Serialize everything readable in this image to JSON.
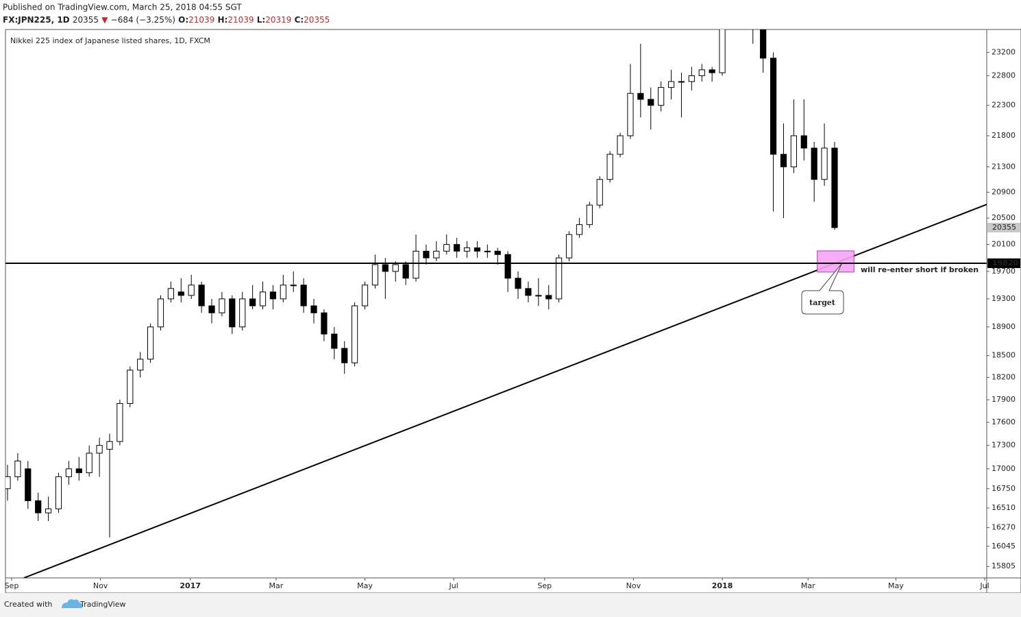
{
  "header": {
    "published": "Published on TradingView.com, March 25, 2018 04:55 SGT",
    "symbol": "FX:JPN225, 1D",
    "last": "20355",
    "arrow": "▼",
    "change": "−684 (−3.25%)",
    "o_label": "O:",
    "o": "21039",
    "h_label": "H:",
    "h": "21039",
    "l_label": "L:",
    "l": "20319",
    "c_label": "C:",
    "c": "20355"
  },
  "chart_data": {
    "type": "candlestick",
    "title": "Nikkei 225 index of Japanese listed shares, 1D, FXCM",
    "x": [
      0,
      1,
      2,
      3,
      4,
      5,
      6,
      7,
      8,
      9,
      10,
      11,
      12,
      13,
      14,
      15,
      16,
      17,
      18,
      19,
      20,
      21,
      22,
      23,
      24,
      25,
      26,
      27,
      28,
      29,
      30,
      31,
      32,
      33,
      34,
      35,
      36,
      37,
      38,
      39,
      40,
      41,
      42,
      43,
      44,
      45,
      46,
      47,
      48,
      49,
      50,
      51,
      52,
      53,
      54,
      55,
      56,
      57,
      58,
      59,
      60,
      61,
      62,
      63,
      64,
      65,
      66,
      67,
      68,
      69,
      70,
      71,
      72,
      73,
      74,
      75,
      76,
      77,
      78,
      79,
      80,
      81
    ],
    "open": [
      16750,
      16900,
      17000,
      16600,
      16450,
      16500,
      16900,
      17000,
      16950,
      17200,
      17250,
      17350,
      17850,
      18300,
      18450,
      18900,
      19300,
      19400,
      19350,
      19500,
      19200,
      19100,
      19300,
      18900,
      19300,
      19200,
      19400,
      19300,
      19500,
      19500,
      19200,
      19100,
      18800,
      18600,
      18400,
      19200,
      19500,
      19800,
      19700,
      19800,
      19600,
      20000,
      19900,
      20000,
      20100,
      20000,
      20050,
      20000,
      20000,
      19950,
      19600,
      19450,
      19350,
      19350,
      19300,
      19900,
      20250,
      20400,
      20700,
      21100,
      21500,
      21800,
      22500,
      22400,
      22300,
      22600,
      22700,
      22700,
      22800,
      22900,
      22850,
      23700,
      23750,
      23800,
      23650,
      23100,
      21500,
      21300,
      21800,
      21600,
      21100,
      21600
    ],
    "high": [
      17050,
      17200,
      17100,
      16700,
      16650,
      16950,
      17100,
      17150,
      17300,
      17400,
      17450,
      17900,
      18350,
      18550,
      18950,
      19350,
      19550,
      19600,
      19650,
      19550,
      19300,
      19400,
      19350,
      19400,
      19500,
      19550,
      19500,
      19650,
      19700,
      19600,
      19300,
      19150,
      18900,
      18700,
      19250,
      19550,
      19950,
      19900,
      19850,
      19850,
      20250,
      20100,
      20150,
      20250,
      20200,
      20150,
      20150,
      20100,
      20050,
      20000,
      19700,
      19550,
      19600,
      19500,
      19950,
      20300,
      20500,
      20750,
      21150,
      21550,
      21850,
      23000,
      23350,
      22600,
      22700,
      22900,
      22850,
      22950,
      23000,
      22950,
      23700,
      23850,
      23900,
      23850,
      23700,
      23200,
      22000,
      22400,
      22400,
      21700,
      22000,
      21700
    ],
    "low": [
      16600,
      16850,
      16500,
      16350,
      16350,
      16450,
      16800,
      16850,
      16900,
      16900,
      16150,
      17300,
      17800,
      18200,
      18400,
      18850,
      19250,
      19250,
      19300,
      19100,
      18950,
      19050,
      18800,
      18850,
      19150,
      19150,
      19150,
      19250,
      19400,
      19100,
      18950,
      18700,
      18450,
      18250,
      18350,
      19150,
      19450,
      19300,
      19550,
      19500,
      19550,
      19800,
      19850,
      19950,
      19900,
      19900,
      19900,
      19900,
      19800,
      19400,
      19300,
      19250,
      19200,
      19150,
      19250,
      19850,
      20200,
      20350,
      20650,
      21050,
      21450,
      21750,
      22100,
      21900,
      22200,
      22400,
      22100,
      22550,
      22700,
      22700,
      22800,
      23600,
      23600,
      23350,
      22850,
      20600,
      20500,
      21200,
      21400,
      20750,
      21000,
      20319
    ],
    "close": [
      16900,
      17100,
      16600,
      16450,
      16500,
      16900,
      17000,
      16950,
      17200,
      17300,
      17350,
      17850,
      18300,
      18450,
      18900,
      19300,
      19450,
      19350,
      19500,
      19200,
      19100,
      19300,
      18900,
      19300,
      19200,
      19400,
      19300,
      19500,
      19500,
      19200,
      19100,
      18800,
      18600,
      18400,
      19200,
      19500,
      19800,
      19700,
      19800,
      19600,
      20000,
      19900,
      20000,
      20100,
      20000,
      20050,
      20000,
      20000,
      19950,
      19600,
      19450,
      19350,
      19350,
      19300,
      19900,
      20250,
      20400,
      20700,
      21100,
      21500,
      21800,
      22500,
      22400,
      22300,
      22600,
      22700,
      22700,
      22800,
      22900,
      22850,
      23700,
      23750,
      23800,
      23650,
      23100,
      21500,
      21300,
      21800,
      21600,
      21100,
      21600,
      20355
    ],
    "up_color": "#ffffff",
    "down_color": "#000000",
    "outline_color": "#000000",
    "xlim": [
      -0.2,
      95.9
    ],
    "xticks": [
      {
        "value": 0.4,
        "label": "Sep"
      },
      {
        "value": 9.1,
        "label": "Nov"
      },
      {
        "value": 17.9,
        "label": "2017"
      },
      {
        "value": 26.3,
        "label": "Mar"
      },
      {
        "value": 35.0,
        "label": "May"
      },
      {
        "value": 43.7,
        "label": "Jul"
      },
      {
        "value": 52.6,
        "label": "Sep"
      },
      {
        "value": 61.3,
        "label": "Nov"
      },
      {
        "value": 70.0,
        "label": "2018"
      },
      {
        "value": 78.4,
        "label": "Mar"
      },
      {
        "value": 87.0,
        "label": "May"
      },
      {
        "value": 95.7,
        "label": "Jul"
      }
    ],
    "ylim": [
      15670,
      23600
    ],
    "log_scale": true,
    "grid": false,
    "yticks": [
      15805,
      16045,
      16270,
      16510,
      16750,
      17000,
      17300,
      17600,
      17900,
      18200,
      18500,
      18900,
      19300,
      19700,
      20100,
      20500,
      20900,
      21300,
      21800,
      22300,
      22800,
      23200
    ],
    "hline": {
      "value": 19820,
      "color": "#000000"
    },
    "trendline": {
      "x": [
        1.6,
        95.9
      ],
      "y": [
        15670,
        20710
      ],
      "color": "#000000"
    },
    "target_box": {
      "x": [
        79.3,
        82.9
      ],
      "y": [
        19690,
        20005
      ],
      "color": "#f5a3f5"
    },
    "annotations": {
      "short_note": "will re-enter short if broken",
      "target": "target"
    }
  },
  "footer": {
    "created": "Created with",
    "brand": "TradingView"
  }
}
